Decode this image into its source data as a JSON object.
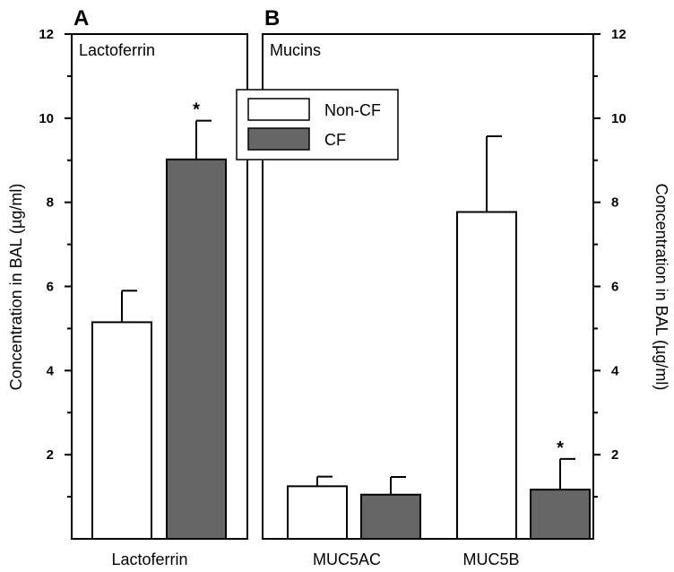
{
  "chart_data": [
    {
      "type": "bar",
      "panel_letter": "A",
      "title": "Lactoferrin",
      "categories": [
        "Lactoferrin"
      ],
      "series": [
        {
          "name": "Non-CF",
          "values": [
            5.15
          ],
          "errors": [
            0.75
          ],
          "significant": [
            false
          ]
        },
        {
          "name": "CF",
          "values": [
            9.02
          ],
          "errors": [
            0.92
          ],
          "significant": [
            true
          ]
        }
      ],
      "ylabel": "Concentration in BAL (µg/ml)",
      "ylim": [
        0,
        12
      ],
      "yticks": [
        "2",
        "4",
        "6",
        "8",
        "10",
        "12"
      ]
    },
    {
      "type": "bar",
      "panel_letter": "B",
      "title": "Mucins",
      "categories": [
        "MUC5AC",
        "MUC5B"
      ],
      "series": [
        {
          "name": "Non-CF",
          "values": [
            1.25,
            7.77
          ],
          "errors": [
            0.23,
            1.8
          ],
          "significant": [
            false,
            false
          ]
        },
        {
          "name": "CF",
          "values": [
            1.05,
            1.17
          ],
          "errors": [
            0.42,
            0.73
          ],
          "significant": [
            false,
            true
          ]
        }
      ],
      "ylabel": "Concentration in BAL (µg/ml)",
      "ylim": [
        0,
        12
      ],
      "yticks": [
        "2",
        "4",
        "6",
        "8",
        "10",
        "12"
      ]
    }
  ],
  "legend": [
    {
      "label": "Non-CF",
      "color": "#ffffff"
    },
    {
      "label": "CF",
      "color": "#666666"
    }
  ],
  "significance_marker": "*",
  "colors": {
    "noncf": "#ffffff",
    "cf": "#666666",
    "stroke": "#000000"
  }
}
